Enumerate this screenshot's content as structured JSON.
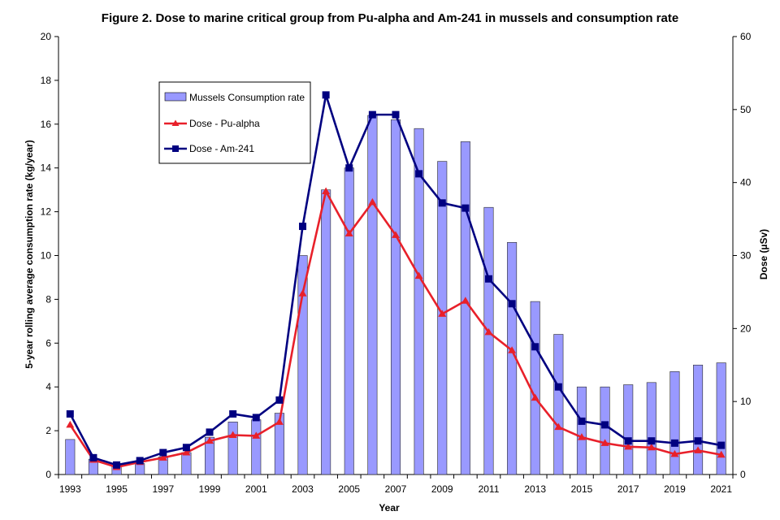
{
  "chart_data": {
    "type": "bar+line",
    "title": "Figure 2. Dose to marine critical group from Pu-alpha and Am-241 in mussels and consumption rate",
    "xlabel": "Year",
    "ylabel_left": "5-year rolling average consumption rate (kg/year)",
    "ylabel_right": "Dose (µSv)",
    "ylim_left": [
      0,
      20
    ],
    "ylim_right": [
      0,
      60
    ],
    "left_ticks": [
      0,
      2,
      4,
      6,
      8,
      10,
      12,
      14,
      16,
      18,
      20
    ],
    "right_ticks": [
      0,
      10,
      20,
      30,
      40,
      50,
      60
    ],
    "x_tick_labels": [
      "1993",
      "1995",
      "1997",
      "1999",
      "2001",
      "2003",
      "2005",
      "2007",
      "2009",
      "2011",
      "2013",
      "2015",
      "2017",
      "2019",
      "2021"
    ],
    "years": [
      1993,
      1994,
      1995,
      1996,
      1997,
      1998,
      1999,
      2000,
      2001,
      2002,
      2003,
      2004,
      2005,
      2006,
      2007,
      2008,
      2009,
      2010,
      2011,
      2012,
      2013,
      2014,
      2015,
      2016,
      2017,
      2018,
      2019,
      2020,
      2021
    ],
    "series": [
      {
        "name": "Mussels Consumption rate",
        "type": "bar",
        "axis": "left",
        "color": "#9999ff",
        "values": [
          1.6,
          0.7,
          0.4,
          0.5,
          0.8,
          1.0,
          1.7,
          2.4,
          2.5,
          2.8,
          10.0,
          13.0,
          14.0,
          16.4,
          16.2,
          15.8,
          14.3,
          15.2,
          12.2,
          10.6,
          7.9,
          6.4,
          4.0,
          4.0,
          4.1,
          4.2,
          4.7,
          5.0,
          5.1
        ]
      },
      {
        "name": "Dose - Pu-alpha",
        "type": "line",
        "axis": "right",
        "marker": "triangle",
        "color": "#e8202a",
        "values": [
          6.8,
          2.0,
          1.0,
          1.7,
          2.3,
          3.0,
          4.6,
          5.4,
          5.3,
          7.2,
          24.8,
          38.8,
          33.0,
          37.3,
          32.8,
          27.2,
          22.0,
          23.8,
          19.5,
          17.0,
          10.5,
          6.5,
          5.1,
          4.3,
          3.8,
          3.7,
          2.8,
          3.3,
          2.7
        ]
      },
      {
        "name": "Dose - Am-241",
        "type": "line",
        "axis": "right",
        "marker": "square",
        "color": "#000080",
        "values": [
          8.3,
          2.3,
          1.3,
          1.9,
          3.0,
          3.7,
          5.8,
          8.3,
          7.8,
          10.2,
          34.0,
          52.0,
          42.0,
          49.3,
          49.3,
          41.2,
          37.2,
          36.5,
          26.8,
          23.4,
          17.5,
          12.0,
          7.3,
          6.8,
          4.6,
          4.6,
          4.3,
          4.6,
          4.0
        ]
      }
    ],
    "legend_position": "top-left",
    "grid": false
  }
}
